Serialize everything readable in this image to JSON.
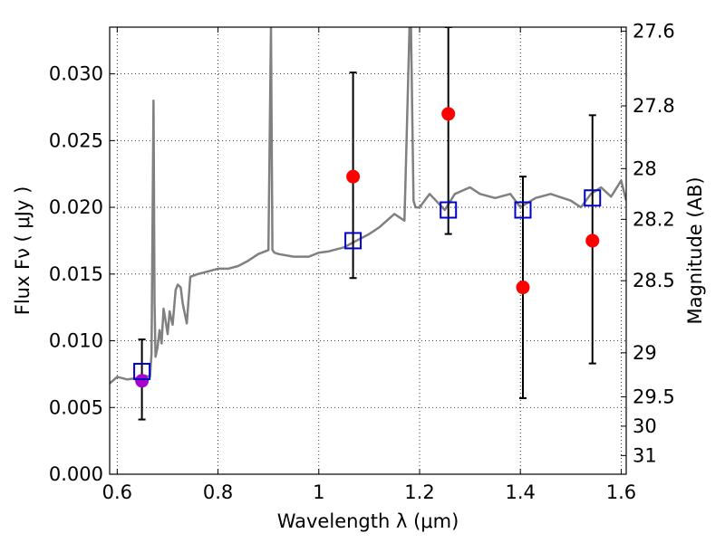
{
  "chart_data": {
    "type": "scatter",
    "xlabel": "Wavelength  λ (μm)",
    "ylabel": "Flux  Fν  ( μJy )",
    "ylabel_right": "Magnitude (AB)",
    "xlim": [
      0.585,
      1.61
    ],
    "ylim": [
      0.0,
      0.0335
    ],
    "x_ticks": [
      0.6,
      0.8,
      1.0,
      1.2,
      1.4,
      1.6
    ],
    "x_tick_labels": [
      "0.6",
      "0.8",
      "1",
      "1.2",
      "1.4",
      "1.6"
    ],
    "y_ticks": [
      0.0,
      0.005,
      0.01,
      0.015,
      0.02,
      0.025,
      0.03
    ],
    "y_tick_labels": [
      "0.000",
      "0.005",
      "0.010",
      "0.015",
      "0.020",
      "0.025",
      "0.030"
    ],
    "right_ticks": [
      {
        "label": "27.6",
        "flux": 0.0332
      },
      {
        "label": "27.8",
        "flux": 0.0276
      },
      {
        "label": "28",
        "flux": 0.0229
      },
      {
        "label": "28.2",
        "flux": 0.0191
      },
      {
        "label": "28.5",
        "flux": 0.0145
      },
      {
        "label": "29",
        "flux": 0.0091
      },
      {
        "label": "29.5",
        "flux": 0.0058
      },
      {
        "label": "30",
        "flux": 0.0036
      },
      {
        "label": "31",
        "flux": 0.0014
      }
    ],
    "grid": true,
    "colors": {
      "model": "#808080",
      "observed": "#ff0000",
      "highlight": "#aa00cc",
      "model_box": "#0000cc",
      "errorbar": "#000000"
    },
    "series": [
      {
        "kind": "line",
        "x": [
          0.585,
          0.6,
          0.62,
          0.64,
          0.655,
          0.665,
          0.668,
          0.672,
          0.674,
          0.676,
          0.68,
          0.684,
          0.688,
          0.692,
          0.696,
          0.7,
          0.704,
          0.71,
          0.716,
          0.72,
          0.726,
          0.73,
          0.738,
          0.745,
          0.76,
          0.78,
          0.8,
          0.82,
          0.84,
          0.86,
          0.88,
          0.9,
          0.905,
          0.908,
          0.912,
          0.92,
          0.95,
          0.98,
          1.0,
          1.02,
          1.05,
          1.07,
          1.1,
          1.12,
          1.15,
          1.17,
          1.18,
          1.183,
          1.188,
          1.192,
          1.2,
          1.22,
          1.25,
          1.27,
          1.3,
          1.32,
          1.35,
          1.38,
          1.4,
          1.43,
          1.46,
          1.5,
          1.52,
          1.54,
          1.56,
          1.58,
          1.6,
          1.61
        ],
        "y": [
          0.0068,
          0.0073,
          0.0071,
          0.0072,
          0.0074,
          0.0073,
          0.009,
          0.028,
          0.013,
          0.0088,
          0.0095,
          0.0108,
          0.0098,
          0.0124,
          0.0115,
          0.0105,
          0.0122,
          0.0112,
          0.0138,
          0.0142,
          0.014,
          0.0128,
          0.0113,
          0.0148,
          0.015,
          0.0152,
          0.0154,
          0.0154,
          0.0156,
          0.016,
          0.0165,
          0.0168,
          0.0335,
          0.0168,
          0.0166,
          0.0165,
          0.0163,
          0.0163,
          0.0166,
          0.0167,
          0.017,
          0.0174,
          0.018,
          0.0185,
          0.0195,
          0.019,
          0.0335,
          0.0335,
          0.0205,
          0.02,
          0.02,
          0.021,
          0.0198,
          0.021,
          0.0215,
          0.021,
          0.0207,
          0.021,
          0.02,
          0.0207,
          0.021,
          0.0205,
          0.02,
          0.021,
          0.0215,
          0.0208,
          0.022,
          0.0205
        ]
      },
      {
        "kind": "model_boxes",
        "x": [
          0.649,
          1.068,
          1.257,
          1.405,
          1.543
        ],
        "y": [
          0.0077,
          0.0175,
          0.0198,
          0.0198,
          0.0207
        ]
      },
      {
        "kind": "points_with_errors",
        "x": [
          0.649,
          1.068,
          1.257,
          1.405,
          1.543
        ],
        "y": [
          0.007,
          0.0223,
          0.027,
          0.014,
          0.0175
        ],
        "err_low": [
          0.0029,
          0.0076,
          0.009,
          0.0083,
          0.0092
        ],
        "err_high": [
          0.0031,
          0.0078,
          0.0065,
          0.0083,
          0.0094
        ],
        "highlight_index": 0
      }
    ]
  }
}
